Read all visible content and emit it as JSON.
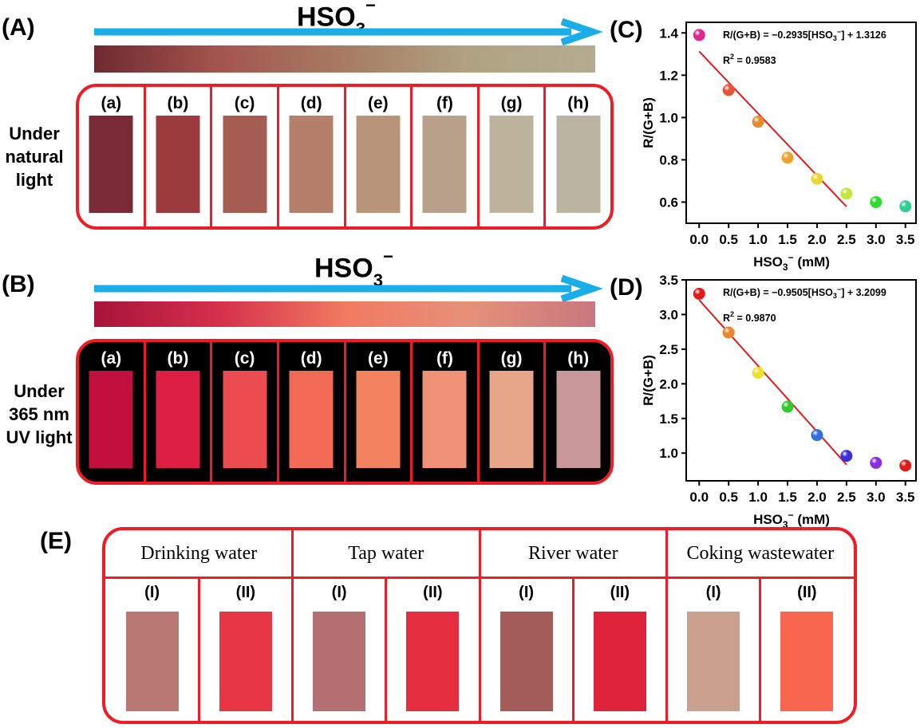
{
  "panels": {
    "A": {
      "letter": "(A)",
      "title_main": "HSO",
      "title_sub": "3",
      "title_sup": "−",
      "side_label_lines": [
        "Under",
        "natural",
        "light"
      ],
      "gradient_colors": [
        "#6e2a30",
        "#a4554e",
        "#a67c63",
        "#b0a383",
        "#b4ab90"
      ],
      "strips": [
        {
          "label": "(a)",
          "color": "#7a2a34"
        },
        {
          "label": "(b)",
          "color": "#9b3b3d"
        },
        {
          "label": "(c)",
          "color": "#a55c51"
        },
        {
          "label": "(d)",
          "color": "#b5806a"
        },
        {
          "label": "(e)",
          "color": "#b89479"
        },
        {
          "label": "(f)",
          "color": "#b9a08a"
        },
        {
          "label": "(g)",
          "color": "#bdb29c"
        },
        {
          "label": "(h)",
          "color": "#bcb4a2"
        }
      ]
    },
    "B": {
      "letter": "(B)",
      "title_main": "HSO",
      "title_sub": "3",
      "title_sup": "−",
      "side_label_lines": [
        "Under",
        "365 nm",
        "UV light"
      ],
      "gradient_colors": [
        "#a8133a",
        "#d5304b",
        "#f07a60",
        "#e59179",
        "#c97780"
      ],
      "strips": [
        {
          "label": "(a)",
          "color": "#c2103e"
        },
        {
          "label": "(b)",
          "color": "#dc1f43"
        },
        {
          "label": "(c)",
          "color": "#ec4b4f"
        },
        {
          "label": "(d)",
          "color": "#f26a56"
        },
        {
          "label": "(e)",
          "color": "#f28260"
        },
        {
          "label": "(f)",
          "color": "#ee9176"
        },
        {
          "label": "(g)",
          "color": "#e7a688"
        },
        {
          "label": "(h)",
          "color": "#c89797"
        }
      ]
    },
    "E": {
      "letter": "(E)",
      "headers": [
        "Drinking water",
        "Tap water",
        "River water",
        "Coking wastewater"
      ],
      "strips": [
        {
          "label": "(I)",
          "color": "#b97874"
        },
        {
          "label": "(II)",
          "color": "#e73745"
        },
        {
          "label": "(I)",
          "color": "#b46f72"
        },
        {
          "label": "(II)",
          "color": "#e52e40"
        },
        {
          "label": "(I)",
          "color": "#a35c58"
        },
        {
          "label": "(II)",
          "color": "#de223a"
        },
        {
          "label": "(I)",
          "color": "#c8a08d"
        },
        {
          "label": "(II)",
          "color": "#f8664f"
        }
      ]
    }
  },
  "chart_data": [
    {
      "type": "scatter",
      "panel_letter": "(C)",
      "equation": "R/(G+B) = −0.2935[HSO",
      "equation_sub": "3",
      "equation_sup": "−",
      "equation_tail": "] + 1.3126",
      "r2_prefix": "R",
      "r2_sup": "2",
      "r2_value": " = 0.9583",
      "ylabel": "R/(G+B)",
      "xlabel_main": "HSO",
      "xlabel_sub": "3",
      "xlabel_sup": "−",
      "xlabel_tail": " (mM)",
      "xlim": [
        -0.22,
        3.68
      ],
      "ylim": [
        0.5,
        1.45
      ],
      "xticks": [
        0.0,
        0.5,
        1.0,
        1.5,
        2.0,
        2.5,
        3.0,
        3.5
      ],
      "xtick_labels": [
        "0.0",
        "0.5",
        "1.0",
        "1.5",
        "2.0",
        "2.5",
        "3.0",
        "3.5"
      ],
      "yticks": [
        0.6,
        0.8,
        1.0,
        1.2,
        1.4
      ],
      "ytick_labels": [
        "0.6",
        "0.8",
        "1.0",
        "1.2",
        "1.4"
      ],
      "x": [
        0.0,
        0.5,
        1.0,
        1.5,
        2.0,
        2.5,
        3.0,
        3.5
      ],
      "y": [
        1.39,
        1.13,
        0.98,
        0.81,
        0.71,
        0.64,
        0.6,
        0.58
      ],
      "point_colors": [
        "#e0278f",
        "#e8543a",
        "#e88a2e",
        "#eea22e",
        "#e8d633",
        "#c2e83b",
        "#2fd92e",
        "#2fcf8e"
      ],
      "fit": {
        "slope": -0.2935,
        "intercept": 1.3126,
        "x_range": [
          0.0,
          2.5
        ],
        "color": "#e11b1b"
      }
    },
    {
      "type": "scatter",
      "panel_letter": "(D)",
      "equation": "R/(G+B) = −0.9505[HSO",
      "equation_sub": "3",
      "equation_sup": "−",
      "equation_tail": "] + 3.2099",
      "r2_prefix": "R",
      "r2_sup": "2",
      "r2_value": " = 0.9870",
      "ylabel": "R/(G+B)",
      "xlabel_main": "HSO",
      "xlabel_sub": "3",
      "xlabel_sup": "−",
      "xlabel_tail": " (mM)",
      "xlim": [
        -0.22,
        3.68
      ],
      "ylim": [
        0.6,
        3.5
      ],
      "xticks": [
        0.0,
        0.5,
        1.0,
        1.5,
        2.0,
        2.5,
        3.0,
        3.5
      ],
      "xtick_labels": [
        "0.0",
        "0.5",
        "1.0",
        "1.5",
        "2.0",
        "2.5",
        "3.0",
        "3.5"
      ],
      "yticks": [
        1.0,
        1.5,
        2.0,
        2.5,
        3.0,
        3.5
      ],
      "ytick_labels": [
        "1.0",
        "1.5",
        "2.0",
        "2.5",
        "3.0",
        "3.5"
      ],
      "x": [
        0.0,
        0.5,
        1.0,
        1.5,
        2.0,
        2.5,
        3.0,
        3.5
      ],
      "y": [
        3.3,
        2.74,
        2.16,
        1.67,
        1.26,
        0.96,
        0.86,
        0.82
      ],
      "point_colors": [
        "#e11b1b",
        "#e8852e",
        "#eee02e",
        "#34c92e",
        "#2f6fe0",
        "#3b2fe0",
        "#8a2fe0",
        "#e11b1b"
      ],
      "fit": {
        "slope": -0.9505,
        "intercept": 3.2099,
        "x_range": [
          0.0,
          2.5
        ],
        "color": "#e11b1b"
      }
    }
  ]
}
